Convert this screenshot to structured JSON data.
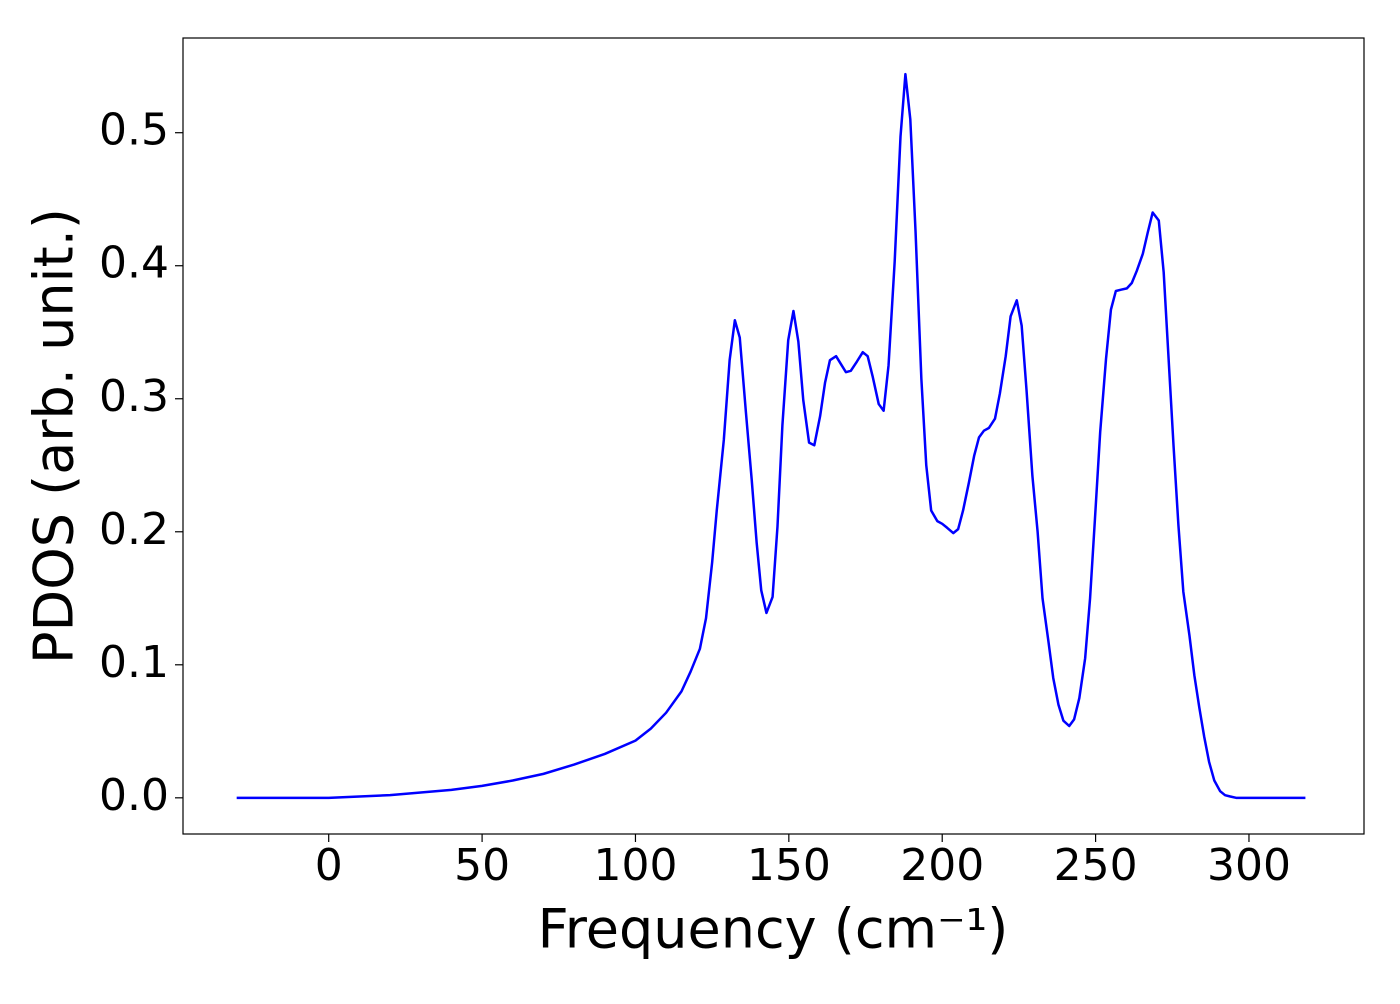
{
  "chart_data": {
    "type": "line",
    "x_label": "Frequency (cm⁻¹)",
    "y_label": "PDOS (arb. unit.)",
    "series": [
      {
        "color": "#0000ff",
        "x": [
          -30,
          0,
          10,
          20,
          30,
          40,
          50,
          60,
          70,
          80,
          90,
          100,
          105,
          110,
          115,
          118,
          121,
          123,
          125,
          126.5,
          128.8,
          130.7,
          132.4,
          134,
          136,
          137.9,
          139.5,
          141,
          142.7,
          144.7,
          146.3,
          147.9,
          149.8,
          151.5,
          153.1,
          154.7,
          156.6,
          158.3,
          160.2,
          161.8,
          163.4,
          165.4,
          167,
          168.6,
          170.2,
          172.2,
          174.1,
          175.7,
          177.3,
          179.3,
          180.9,
          182.5,
          184.5,
          186.4,
          188,
          189.6,
          191.3,
          193.2,
          194.8,
          196.4,
          198.4,
          200,
          201.6,
          203.6,
          205.2,
          206.8,
          208.7,
          210.4,
          212,
          213.6,
          215.2,
          217.2,
          218.8,
          220.7,
          222.3,
          224.3,
          225.9,
          227.5,
          229.4,
          231.1,
          232.7,
          234.6,
          236.2,
          237.9,
          239.5,
          241.4,
          243,
          244.7,
          246.6,
          248.2,
          249.8,
          251.5,
          253.4,
          255,
          256.6,
          258.3,
          260.2,
          261.8,
          263.4,
          265.4,
          267,
          268.6,
          270.6,
          272.2,
          273.8,
          275.4,
          277,
          278.6,
          280.6,
          282.2,
          283.8,
          285.4,
          287,
          288.7,
          290.6,
          292.2,
          293.9,
          295.8,
          302,
          318.4
        ],
        "values": [
          0,
          0,
          0.001,
          0.002,
          0.004,
          0.006,
          0.009,
          0.013,
          0.018,
          0.025,
          0.033,
          0.043,
          0.052,
          0.064,
          0.08,
          0.095,
          0.112,
          0.135,
          0.177,
          0.216,
          0.269,
          0.329,
          0.359,
          0.346,
          0.29,
          0.239,
          0.192,
          0.156,
          0.139,
          0.151,
          0.204,
          0.28,
          0.344,
          0.366,
          0.343,
          0.299,
          0.267,
          0.265,
          0.287,
          0.312,
          0.329,
          0.332,
          0.326,
          0.32,
          0.321,
          0.328,
          0.335,
          0.332,
          0.317,
          0.296,
          0.291,
          0.325,
          0.403,
          0.497,
          0.544,
          0.51,
          0.426,
          0.315,
          0.25,
          0.216,
          0.208,
          0.206,
          0.203,
          0.199,
          0.202,
          0.216,
          0.237,
          0.257,
          0.271,
          0.276,
          0.278,
          0.285,
          0.304,
          0.332,
          0.362,
          0.374,
          0.355,
          0.306,
          0.242,
          0.2,
          0.15,
          0.118,
          0.09,
          0.07,
          0.058,
          0.054,
          0.059,
          0.075,
          0.105,
          0.15,
          0.21,
          0.275,
          0.33,
          0.367,
          0.381,
          0.382,
          0.383,
          0.387,
          0.396,
          0.409,
          0.425,
          0.44,
          0.434,
          0.395,
          0.33,
          0.265,
          0.205,
          0.155,
          0.122,
          0.092,
          0.068,
          0.046,
          0.027,
          0.013,
          0.005,
          0.002,
          0.001,
          0,
          0,
          0
        ]
      }
    ],
    "xlim": [
      -47.5,
      337.5
    ],
    "xticks": [
      0,
      50,
      100,
      150,
      200,
      250,
      300
    ],
    "ylim": [
      -0.0272,
      0.5712
    ],
    "yticks": [
      {
        "value": 0,
        "label": "0.0"
      },
      0.1,
      0.2,
      0.3,
      0.4,
      0.5
    ]
  }
}
